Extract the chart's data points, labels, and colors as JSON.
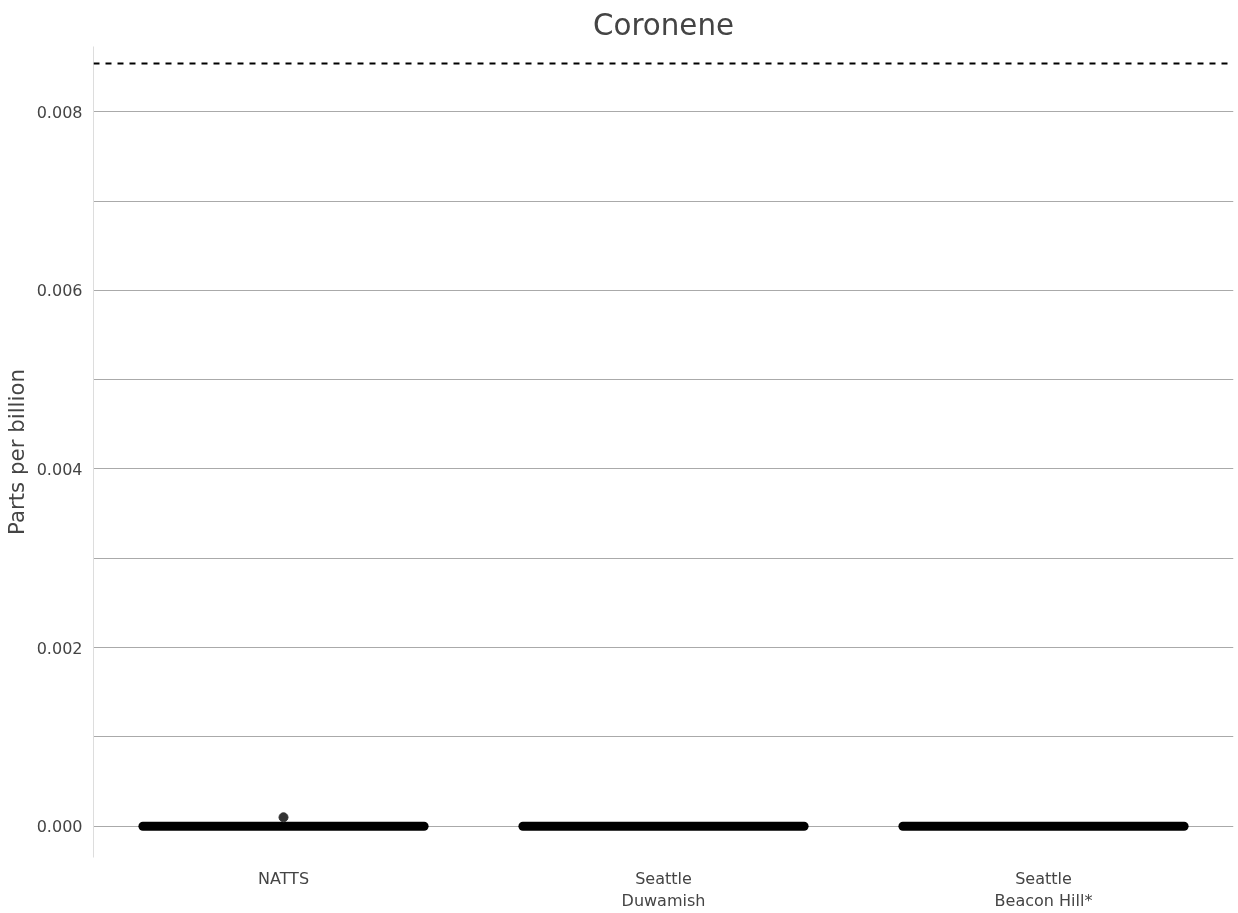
{
  "chart_data": {
    "type": "box",
    "title": "Coronene",
    "ylabel": "Parts per billion",
    "categories": [
      "NATTS",
      "Seattle\nDuwamish",
      "Seattle\nBeacon Hill*"
    ],
    "boxes": [
      {
        "low": 0,
        "q1": 0,
        "median": 0,
        "q3": 0,
        "high": 0,
        "outliers": [
          0.0001
        ]
      },
      {
        "low": 0,
        "q1": 0,
        "median": 0,
        "q3": 0,
        "high": 0
      },
      {
        "low": 0,
        "q1": 0,
        "median": 0,
        "q3": 0,
        "high": 0
      }
    ],
    "ylim": [
      -0.00035,
      0.00873
    ],
    "yticks": [
      {
        "value": 0,
        "label": "0.000"
      },
      {
        "value": 0.001,
        "label": null
      },
      0.002,
      {
        "value": 0.003,
        "label": null
      },
      0.004,
      {
        "value": 0.005,
        "label": null
      },
      0.006,
      {
        "value": 0.007,
        "label": null
      },
      0.008
    ],
    "ref_lines": [
      {
        "axis": "y",
        "value": 0.00854,
        "color": "#000000",
        "line_style": "dashed"
      }
    ],
    "grid": "y"
  }
}
